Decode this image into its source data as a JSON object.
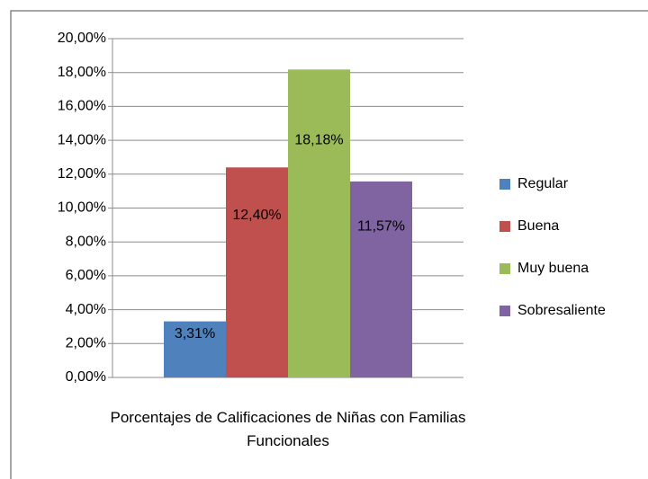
{
  "chart_data": {
    "type": "bar",
    "categories": [
      "Porcentajes de Calificaciones de Niñas con Familias Funcionales"
    ],
    "series": [
      {
        "name": "Regular",
        "color": "#4f81bd",
        "values": [
          3.31
        ],
        "value_labels": [
          "3,31%"
        ]
      },
      {
        "name": "Buena",
        "color": "#c0504d",
        "values": [
          12.4
        ],
        "value_labels": [
          "12,40%"
        ]
      },
      {
        "name": "Muy buena",
        "color": "#9bbb59",
        "values": [
          18.18
        ],
        "value_labels": [
          "18,18%"
        ]
      },
      {
        "name": "Sobresaliente",
        "color": "#8064a2",
        "values": [
          11.57
        ],
        "value_labels": [
          "11,57%"
        ]
      }
    ],
    "ylim": [
      0,
      20
    ],
    "yticks": [
      {
        "value": 0,
        "label": "0,00%"
      },
      {
        "value": 2,
        "label": "2,00%"
      },
      {
        "value": 4,
        "label": "4,00%"
      },
      {
        "value": 6,
        "label": "6,00%"
      },
      {
        "value": 8,
        "label": "8,00%"
      },
      {
        "value": 10,
        "label": "10,00%"
      },
      {
        "value": 12,
        "label": "12,00%"
      },
      {
        "value": 14,
        "label": "14,00%"
      },
      {
        "value": 16,
        "label": "16,00%"
      },
      {
        "value": 18,
        "label": "18,00%"
      },
      {
        "value": 20,
        "label": "20,00%"
      }
    ],
    "grid": true,
    "legend": "right"
  }
}
